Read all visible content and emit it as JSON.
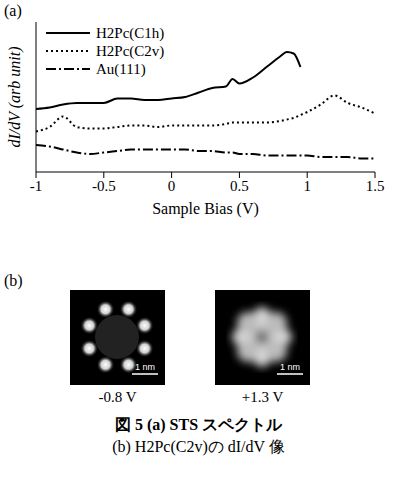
{
  "chart_data": {
    "type": "line",
    "annotations": [
      "(a)"
    ],
    "x_label": "Sample Bias (V)",
    "y_label": "dI/dV (arb unit)",
    "x": [
      -1,
      -0.9,
      -0.8,
      -0.7,
      -0.6,
      -0.5,
      -0.4,
      -0.3,
      -0.2,
      -0.1,
      0,
      0.1,
      0.2,
      0.3,
      0.4,
      0.45,
      0.5,
      0.6,
      0.7,
      0.8,
      0.85,
      0.9,
      0.95,
      1.0,
      1.1,
      1.2,
      1.3,
      1.4,
      1.5
    ],
    "series": [
      {
        "name": "H2Pc(C1h)",
        "color": "#000000",
        "line_style": "solid",
        "values": [
          4.2,
          4.3,
          4.5,
          4.6,
          4.6,
          4.6,
          4.9,
          4.9,
          4.8,
          4.8,
          4.9,
          5.0,
          5.3,
          5.6,
          5.7,
          6.2,
          5.9,
          6.3,
          7.0,
          7.7,
          8.0,
          7.9,
          7.0,
          null,
          null,
          null,
          null,
          null,
          null
        ]
      },
      {
        "name": "H2Pc(C2v)",
        "color": "#000000",
        "line_style": "dotted",
        "values": [
          2.7,
          3.0,
          3.7,
          3.0,
          2.9,
          2.9,
          3.0,
          3.1,
          3.1,
          3.0,
          3.1,
          3.1,
          3.1,
          3.1,
          3.2,
          3.3,
          3.3,
          3.3,
          3.3,
          3.4,
          3.5,
          3.6,
          3.8,
          4.0,
          4.5,
          5.1,
          4.6,
          4.3,
          3.9
        ]
      },
      {
        "name": "Au(111)",
        "color": "#000000",
        "line_style": "dashdot",
        "values": [
          1.8,
          1.7,
          1.5,
          1.3,
          1.2,
          1.3,
          1.4,
          1.5,
          1.5,
          1.5,
          1.5,
          1.5,
          1.4,
          1.4,
          1.3,
          1.3,
          1.2,
          1.2,
          1.1,
          1.1,
          1.1,
          1.1,
          1.1,
          1.1,
          1.0,
          1.0,
          1.0,
          0.9,
          0.9
        ]
      }
    ],
    "xlim": [
      -1,
      1.5
    ],
    "xticks": [
      -1,
      -0.5,
      0,
      0.5,
      1,
      1.5
    ],
    "ylim": [
      0,
      10
    ],
    "yticks": [],
    "tick_labels": "x",
    "legend": "upper left",
    "grid": false
  },
  "panel_b": {
    "label": "(b)",
    "images": [
      {
        "bias": "-0.8 V",
        "scale_bar": "1 nm"
      },
      {
        "bias": "+1.3 V",
        "scale_bar": "1 nm"
      }
    ]
  },
  "caption": [
    "図 5 (a) STS スペクトル",
    "(b) H2Pc(C2v)の dI/dV 像"
  ]
}
